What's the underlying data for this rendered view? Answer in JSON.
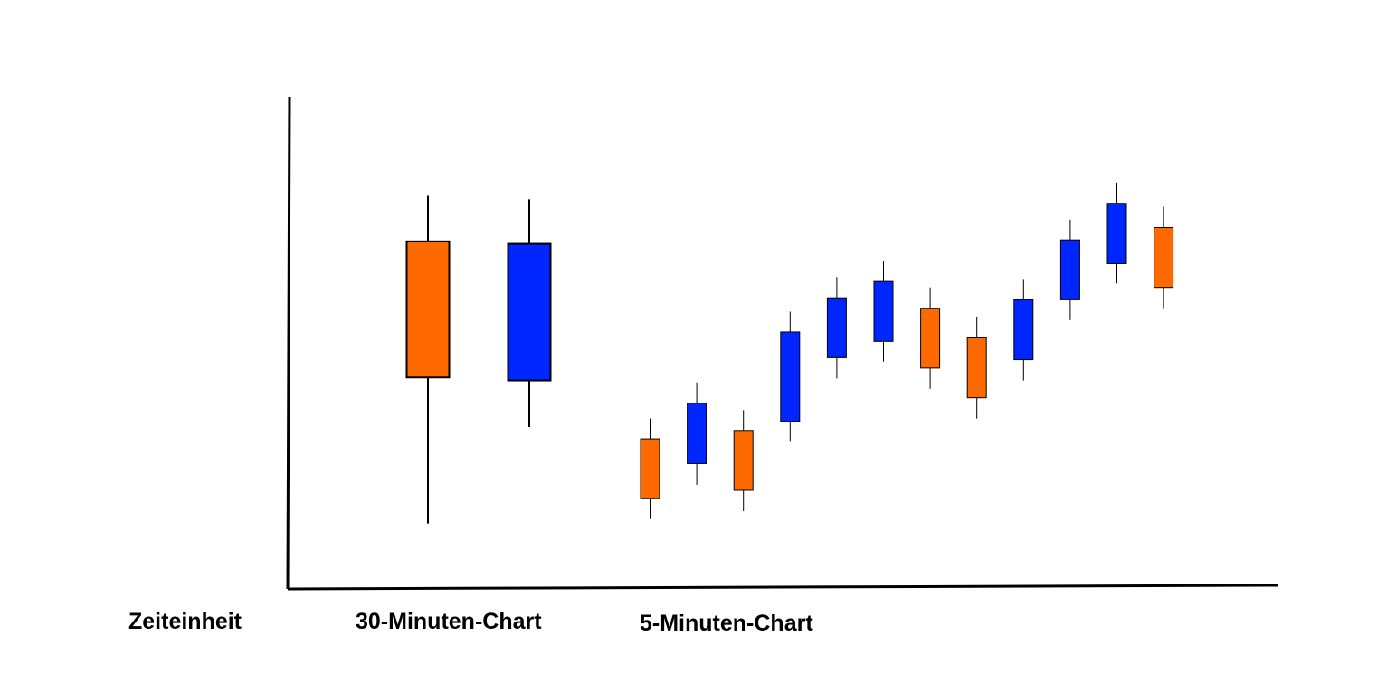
{
  "colors": {
    "bullish": "#0026ff",
    "bearish": "#ff6a00",
    "axis": "#000000",
    "wick": "#000000"
  },
  "labels": {
    "time_unit": "Zeiteinheit",
    "chart_30": "30-Minuten-Chart",
    "chart_5": "5-Minuten-Chart"
  },
  "chart_data": {
    "type": "candlestick",
    "title": "",
    "xlabel": "",
    "ylabel": "",
    "ylim": [
      0,
      100
    ],
    "grid": false,
    "groups": [
      {
        "name": "30-Minuten-Chart",
        "candles": [
          {
            "open": 69.5,
            "close": 42.0,
            "high": 78.7,
            "low": 12.5,
            "color": "bearish"
          },
          {
            "open": 41.4,
            "close": 69.0,
            "high": 78.0,
            "low": 32.0,
            "color": "bullish"
          }
        ]
      },
      {
        "name": "5-Minuten-Chart",
        "candles": [
          {
            "open": 29.6,
            "close": 17.5,
            "high": 33.7,
            "low": 13.4,
            "color": "bearish"
          },
          {
            "open": 24.6,
            "close": 36.8,
            "high": 41.0,
            "low": 20.3,
            "color": "bullish"
          },
          {
            "open": 31.3,
            "close": 19.2,
            "high": 35.4,
            "low": 15.0,
            "color": "bearish"
          },
          {
            "open": 33.1,
            "close": 51.2,
            "high": 55.3,
            "low": 29.0,
            "color": "bullish"
          },
          {
            "open": 46.0,
            "close": 58.1,
            "high": 62.3,
            "low": 41.8,
            "color": "bullish"
          },
          {
            "open": 49.3,
            "close": 61.4,
            "high": 65.5,
            "low": 45.2,
            "color": "bullish"
          },
          {
            "open": 56.0,
            "close": 43.9,
            "high": 60.2,
            "low": 39.7,
            "color": "bearish"
          },
          {
            "open": 50.0,
            "close": 37.9,
            "high": 54.3,
            "low": 33.7,
            "color": "bearish"
          },
          {
            "open": 45.6,
            "close": 57.7,
            "high": 61.9,
            "low": 41.4,
            "color": "bullish"
          },
          {
            "open": 57.7,
            "close": 69.8,
            "high": 73.9,
            "low": 53.6,
            "color": "bullish"
          },
          {
            "open": 65.0,
            "close": 77.2,
            "high": 81.4,
            "low": 61.0,
            "color": "bullish"
          },
          {
            "open": 72.3,
            "close": 60.2,
            "high": 76.5,
            "low": 56.0,
            "color": "bearish"
          }
        ]
      }
    ]
  }
}
